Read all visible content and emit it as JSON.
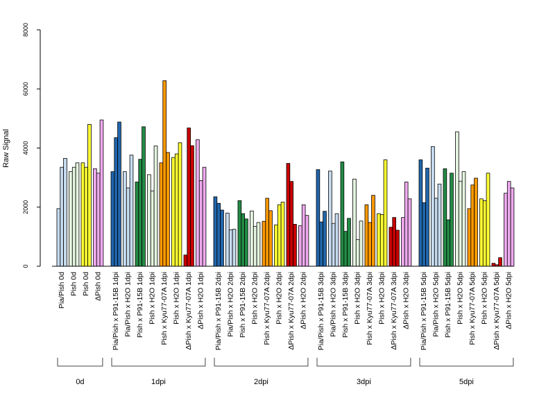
{
  "chart_data": {
    "type": "bar",
    "title": "",
    "xlabel": "",
    "ylabel": "Raw Signal",
    "ylim": [
      0,
      8000
    ],
    "yticks": [
      "0",
      "2000",
      "4000",
      "6000",
      "8000"
    ],
    "grid": false,
    "legend": "none",
    "groups": [
      {
        "label": "0d",
        "categories": [
          {
            "label": "Pia/Pish 0d",
            "color": "#C6DBEF",
            "values": [
              1950,
              3350,
              3650
            ]
          },
          {
            "label": "Pish 0d",
            "color": "#E5F5E0",
            "values": [
              3200,
              3350,
              3500
            ]
          },
          {
            "label": "Pish 0d",
            "color": "#FFFF33",
            "values": [
              3500,
              3350,
              4800
            ]
          },
          {
            "label": "ΔPish 0d",
            "color": "#EEAAEE",
            "values": [
              3300,
              3150,
              4950
            ]
          }
        ]
      },
      {
        "label": "1dpi",
        "categories": [
          {
            "label": "Pia/Pish x P91-15B 1dpi",
            "color": "#2166AC",
            "values": [
              3200,
              4350,
              4880
            ]
          },
          {
            "label": "Pia/Pish x H2O 1dpi",
            "color": "#C6DBEF",
            "values": [
              3200,
              2650,
              3760
            ]
          },
          {
            "label": "Pish x P91-15B 1dpi",
            "color": "#238B45",
            "values": [
              2850,
              3620,
              4720
            ]
          },
          {
            "label": "Pish x H2O 1dpi",
            "color": "#E5F5E0",
            "values": [
              3100,
              2550,
              4070
            ]
          },
          {
            "label": "Pish x Kyu77-07A 1dpi",
            "color": "#FF9900",
            "values": [
              3500,
              6280,
              3850
            ]
          },
          {
            "label": "Pish x H2O 1dpi",
            "color": "#FFFF33",
            "values": [
              3680,
              3800,
              4180
            ]
          },
          {
            "label": "ΔPish x Kyu77-07A 1dpi",
            "color": "#CC0000",
            "values": [
              380,
              4680,
              4080
            ]
          },
          {
            "label": "ΔPish x H2O 1dpi",
            "color": "#EEAAEE",
            "values": [
              4280,
              2900,
              3350
            ]
          }
        ]
      },
      {
        "label": "2dpi",
        "categories": [
          {
            "label": "Pia/Pish x P91-15B 2dpi",
            "color": "#2166AC",
            "values": [
              2350,
              2130,
              1900
            ]
          },
          {
            "label": "Pia/Pish x H2O 2dpi",
            "color": "#C6DBEF",
            "values": [
              1800,
              1230,
              1250
            ]
          },
          {
            "label": "Pish x P91-15B 2dpi",
            "color": "#238B45",
            "values": [
              2220,
              1780,
              1600
            ]
          },
          {
            "label": "Pish x H2O 2dpi",
            "color": "#E5F5E0",
            "values": [
              1870,
              1350,
              1480
            ]
          },
          {
            "label": "Pish x Kyu77-07A 2dpi",
            "color": "#FF9900",
            "values": [
              1520,
              2300,
              1880
            ]
          },
          {
            "label": "Pish x H2O 2dpi",
            "color": "#FFFF33",
            "values": [
              1400,
              2080,
              2170
            ]
          },
          {
            "label": "ΔPish x Kyu77-07A 2dpi",
            "color": "#CC0000",
            "values": [
              3480,
              2870,
              1420
            ]
          },
          {
            "label": "ΔPish x H2O 2dpi",
            "color": "#EEAAEE",
            "values": [
              1370,
              2080,
              1720
            ]
          }
        ]
      },
      {
        "label": "3dpi",
        "categories": [
          {
            "label": "Pia/Pish x P91-15B 3dpi",
            "color": "#2166AC",
            "values": [
              3270,
              1500,
              1860
            ]
          },
          {
            "label": "Pia/Pish x H2O 3dpi",
            "color": "#C6DBEF",
            "values": [
              3220,
              1450,
              1780
            ]
          },
          {
            "label": "Pish x P91-15B 3dpi",
            "color": "#238B45",
            "values": [
              3530,
              1180,
              1620
            ]
          },
          {
            "label": "Pish x H2O 3dpi",
            "color": "#E5F5E0",
            "values": [
              2950,
              900,
              1530
            ]
          },
          {
            "label": "Pish x Kyu77-07A 3dpi",
            "color": "#FF9900",
            "values": [
              2080,
              1480,
              2400
            ]
          },
          {
            "label": "Pish x H2O 3dpi",
            "color": "#FFFF33",
            "values": [
              1780,
              1750,
              3600
            ]
          },
          {
            "label": "ΔPish x Kyu77-07A 3dpi",
            "color": "#CC0000",
            "values": [
              1320,
              1650,
              1220
            ]
          },
          {
            "label": "ΔPish x H2O 3dpi",
            "color": "#EEAAEE",
            "values": [
              1650,
              2850,
              2280
            ]
          }
        ]
      },
      {
        "label": "5dpi",
        "categories": [
          {
            "label": "Pia/Pish x P91-15B 5dpi",
            "color": "#2166AC",
            "values": [
              3600,
              2150,
              3320
            ]
          },
          {
            "label": "Pia/Pish x H2O 5dpi",
            "color": "#C6DBEF",
            "values": [
              4050,
              2300,
              2780
            ]
          },
          {
            "label": "Pish x P91-15B 5dpi",
            "color": "#238B45",
            "values": [
              3300,
              1570,
              3150
            ]
          },
          {
            "label": "Pish x H2O 5dpi",
            "color": "#E5F5E0",
            "values": [
              4550,
              2880,
              3200
            ]
          },
          {
            "label": "Pish x Kyu77-07A 5dpi",
            "color": "#FF9900",
            "values": [
              1950,
              2750,
              2980
            ]
          },
          {
            "label": "Pish x H2O 5dpi",
            "color": "#FFFF33",
            "values": [
              2280,
              2220,
              3150
            ]
          },
          {
            "label": "ΔPish x Kyu77-07A 5dpi",
            "color": "#CC0000",
            "values": [
              100,
              50,
              290
            ]
          },
          {
            "label": "ΔPish x H2O 5dpi",
            "color": "#EEAAEE",
            "values": [
              2470,
              2870,
              2650
            ]
          }
        ]
      }
    ]
  }
}
